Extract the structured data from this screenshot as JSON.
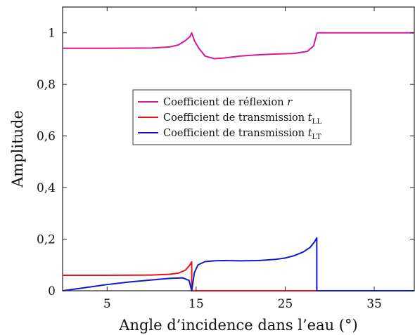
{
  "chart_data": {
    "type": "line",
    "xlabel": "Angle d’incidence dans l’eau (°)",
    "ylabel": "Amplitude",
    "xlim": [
      0,
      39.5
    ],
    "ylim": [
      0,
      1.1
    ],
    "x_ticks": [
      5,
      15,
      25,
      35
    ],
    "x_tick_labels": [
      "5",
      "15",
      "25",
      "35"
    ],
    "y_ticks": [
      0,
      0.2,
      0.4,
      0.6,
      0.8,
      1
    ],
    "y_tick_labels": [
      "0",
      "0,2",
      "0,4",
      "0,6",
      "0,8",
      "1"
    ],
    "grid": false,
    "legend_position": "center",
    "series": [
      {
        "name": "Coefficient de réflexion r",
        "legend": {
          "text": "Coefficient de réflexion ",
          "symbol": "r",
          "sub": ""
        },
        "color": "#d6189a",
        "x": [
          0,
          5,
          10,
          12,
          13,
          13.8,
          14.3,
          14.5,
          14.8,
          15.3,
          16,
          17,
          18,
          20,
          22,
          24,
          26,
          27.5,
          28.2,
          28.5,
          28.6,
          30,
          35,
          39.5
        ],
        "y": [
          0.94,
          0.94,
          0.941,
          0.945,
          0.953,
          0.97,
          0.985,
          1.0,
          0.97,
          0.94,
          0.91,
          0.9,
          0.902,
          0.91,
          0.915,
          0.918,
          0.92,
          0.928,
          0.95,
          0.99,
          1.0,
          1.0,
          1.0,
          1.0
        ]
      },
      {
        "name": "Coefficient de transmission tLL",
        "legend": {
          "text": "Coefficient de transmission ",
          "symbol": "t",
          "sub": "LL"
        },
        "color": "#e8141c",
        "x": [
          0,
          5,
          10,
          12,
          13,
          13.8,
          14.3,
          14.5,
          14.5,
          20,
          30,
          39.5
        ],
        "y": [
          0.06,
          0.06,
          0.061,
          0.064,
          0.068,
          0.08,
          0.1,
          0.112,
          0,
          0,
          0,
          0
        ]
      },
      {
        "name": "Coefficient de transmission tLT",
        "legend": {
          "text": "Coefficient de transmission ",
          "symbol": "t",
          "sub": "LT"
        },
        "color": "#1118cc",
        "x": [
          0,
          2.5,
          5,
          7.5,
          10,
          12,
          13.5,
          14.2,
          14.5,
          14.8,
          15.2,
          16,
          17,
          18,
          20,
          22,
          24,
          25,
          26,
          27,
          27.8,
          28.3,
          28.55,
          28.55,
          35,
          39.5
        ],
        "y": [
          0,
          0.012,
          0.024,
          0.034,
          0.042,
          0.048,
          0.05,
          0.04,
          0,
          0.07,
          0.1,
          0.113,
          0.116,
          0.117,
          0.116,
          0.117,
          0.122,
          0.127,
          0.136,
          0.15,
          0.168,
          0.19,
          0.205,
          0,
          0,
          0
        ]
      }
    ]
  }
}
